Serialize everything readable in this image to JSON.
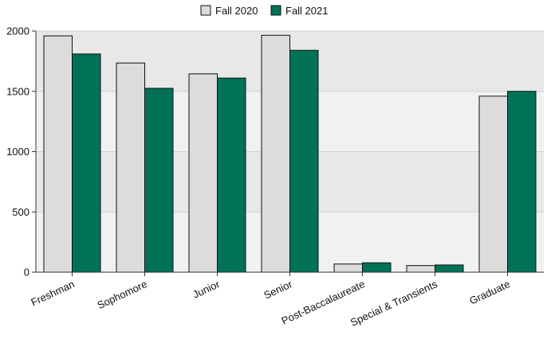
{
  "chart_data": {
    "type": "bar",
    "categories": [
      "Freshman",
      "Sophomore",
      "Junior",
      "Senior",
      "Post-Baccalaureate",
      "Special & Transients",
      "Graduate"
    ],
    "series": [
      {
        "name": "Fall 2020",
        "color": "#dcdcdc",
        "values": [
          1960,
          1735,
          1645,
          1965,
          68,
          55,
          1460
        ]
      },
      {
        "name": "Fall 2021",
        "color": "#027257",
        "values": [
          1810,
          1525,
          1610,
          1840,
          78,
          60,
          1500
        ]
      }
    ],
    "yticks": [
      0,
      500,
      1000,
      1500,
      2000
    ],
    "ylim": [
      0,
      2000
    ],
    "legend_position": "top-center",
    "band_colors": [
      "#e8e8e8",
      "#f1f1f1"
    ],
    "grid": true
  }
}
